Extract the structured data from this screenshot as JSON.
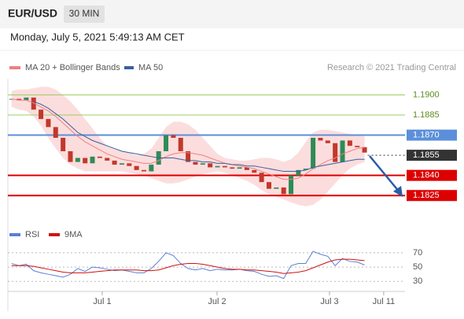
{
  "header": {
    "symbol": "EUR/USD",
    "timeframe": "30 MIN",
    "datetime": "Monday, July 5, 2021 5:49:13 AM CET",
    "source": "Research © 2021 Trading Central"
  },
  "chart_data": [
    {
      "type": "candlestick",
      "up_color": "#2e8b57",
      "down_color": "#c0392b",
      "x": [
        0,
        1,
        2,
        3,
        4,
        5,
        6,
        7,
        8,
        9,
        10,
        11,
        12,
        13,
        14,
        15,
        16,
        17,
        18,
        19,
        20,
        21,
        22,
        23,
        24,
        25,
        26,
        27,
        28,
        29,
        30,
        31,
        32,
        33,
        34,
        35,
        36,
        37,
        38,
        39,
        40,
        41,
        42,
        43,
        44,
        45,
        46,
        47,
        48
      ],
      "close": [
        1.1897,
        1.1896,
        1.1898,
        1.1889,
        1.1882,
        1.1876,
        1.1868,
        1.1858,
        1.185,
        1.1853,
        1.1849,
        1.1854,
        1.1853,
        1.1851,
        1.1848,
        1.1849,
        1.1847,
        1.1844,
        1.1843,
        1.1848,
        1.1858,
        1.187,
        1.1868,
        1.1858,
        1.185,
        1.1848,
        1.1849,
        1.1846,
        1.1847,
        1.1846,
        1.1845,
        1.1846,
        1.1844,
        1.1842,
        1.1835,
        1.183,
        1.1831,
        1.1826,
        1.184,
        1.1844,
        1.1845,
        1.1868,
        1.1866,
        1.1864,
        1.185,
        1.1866,
        1.1862,
        1.1861,
        1.1857
      ],
      "series": [
        {
          "name": "MA 20 + Bollinger Bands",
          "color": "#f08080",
          "band_color": "#fbd5d5",
          "values": [
            1.1897,
            1.1896,
            1.1896,
            1.1894,
            1.1891,
            1.1888,
            1.1884,
            1.1879,
            1.1874,
            1.1869,
            1.1865,
            1.1862,
            1.1859,
            1.1856,
            1.1854,
            1.1852,
            1.1851,
            1.185,
            1.1849,
            1.1849,
            1.1851,
            1.1854,
            1.1856,
            1.1857,
            1.1857,
            1.1856,
            1.1855,
            1.1853,
            1.1851,
            1.1849,
            1.1848,
            1.1847,
            1.1846,
            1.1845,
            1.1843,
            1.1841,
            1.1839,
            1.1837,
            1.1837,
            1.1838,
            1.1841,
            1.1845,
            1.1848,
            1.1851,
            1.1853,
            1.1856,
            1.1858,
            1.186,
            1.1861
          ],
          "upper": [
            1.1903,
            1.1904,
            1.1904,
            1.1905,
            1.1906,
            1.1906,
            1.1904,
            1.19,
            1.1895,
            1.1889,
            1.1882,
            1.1875,
            1.1868,
            1.1862,
            1.186,
            1.1858,
            1.1857,
            1.1855,
            1.1856,
            1.186,
            1.1868,
            1.1876,
            1.188,
            1.188,
            1.1878,
            1.1874,
            1.1868,
            1.1862,
            1.1856,
            1.1853,
            1.1852,
            1.1851,
            1.1851,
            1.1852,
            1.1853,
            1.1853,
            1.1852,
            1.185,
            1.1852,
            1.1857,
            1.1865,
            1.1872,
            1.1874,
            1.1874,
            1.1873,
            1.1872,
            1.1871,
            1.187,
            1.1869
          ],
          "lower": [
            1.1891,
            1.1889,
            1.1888,
            1.1884,
            1.1877,
            1.1868,
            1.186,
            1.1853,
            1.1848,
            1.1845,
            1.1843,
            1.1843,
            1.1843,
            1.1843,
            1.1843,
            1.1843,
            1.1842,
            1.1841,
            1.184,
            1.1838,
            1.1836,
            1.1834,
            1.1834,
            1.1835,
            1.1837,
            1.1839,
            1.1841,
            1.1842,
            1.1843,
            1.1842,
            1.184,
            1.1838,
            1.1836,
            1.1833,
            1.1829,
            1.1826,
            1.1824,
            1.1822,
            1.182,
            1.1818,
            1.1817,
            1.1818,
            1.1822,
            1.1828,
            1.1834,
            1.184,
            1.1845,
            1.1848,
            1.185
          ]
        },
        {
          "name": "MA 50",
          "color": "#3a5f9f",
          "values": [
            null,
            null,
            null,
            1.1895,
            1.1893,
            1.189,
            1.1886,
            1.1882,
            1.1877,
            1.1872,
            1.1869,
            1.1866,
            1.1864,
            1.1862,
            1.186,
            1.1858,
            1.1857,
            1.1856,
            1.1855,
            1.1854,
            1.1853,
            1.1853,
            1.1853,
            1.1852,
            1.1851,
            1.1851,
            1.185,
            1.185,
            1.1849,
            1.1849,
            1.1848,
            1.1848,
            1.1847,
            1.1847,
            1.1846,
            1.1845,
            1.1844,
            1.1843,
            1.1843,
            1.1843,
            1.1844,
            1.1846,
            1.1847,
            1.1848,
            1.1849,
            1.185,
            1.1851,
            1.1852,
            1.1852
          ]
        }
      ],
      "xlim": [
        -0.5,
        53.5
      ],
      "ylim": [
        1.1804,
        1.1912
      ],
      "levels": [
        {
          "value": 1.19,
          "label": "1.1900",
          "color": "#9ccc65",
          "text_color": "#5b8c1e",
          "style": "solid",
          "box": false
        },
        {
          "value": 1.1885,
          "label": "1.1885",
          "color": "#9ccc65",
          "text_color": "#5b8c1e",
          "style": "solid",
          "box": false
        },
        {
          "value": 1.187,
          "label": "1.1870",
          "color": "#5b8fd9",
          "text_color": "#ffffff",
          "style": "solid",
          "box": true
        },
        {
          "value": 1.1855,
          "label": "1.1855",
          "color": "#333333",
          "text_color": "#ffffff",
          "style": "dotted",
          "box": true
        },
        {
          "value": 1.184,
          "label": "1.1840",
          "color": "#dd0000",
          "text_color": "#ffffff",
          "style": "solid",
          "box": true
        },
        {
          "value": 1.1825,
          "label": "1.1825",
          "color": "#dd0000",
          "text_color": "#ffffff",
          "style": "solid",
          "box": true
        }
      ]
    },
    {
      "type": "line",
      "x": [
        0,
        1,
        2,
        3,
        4,
        5,
        6,
        7,
        8,
        9,
        10,
        11,
        12,
        13,
        14,
        15,
        16,
        17,
        18,
        19,
        20,
        21,
        22,
        23,
        24,
        25,
        26,
        27,
        28,
        29,
        30,
        31,
        32,
        33,
        34,
        35,
        36,
        37,
        38,
        39,
        40,
        41,
        42,
        43,
        44,
        45,
        46,
        47,
        48
      ],
      "series": [
        {
          "name": "RSI",
          "color": "#5b7fd6",
          "values": [
            55,
            52,
            54,
            45,
            42,
            40,
            38,
            36,
            40,
            48,
            44,
            50,
            49,
            47,
            45,
            46,
            44,
            42,
            42,
            48,
            58,
            70,
            66,
            55,
            48,
            46,
            48,
            45,
            47,
            46,
            46,
            47,
            45,
            44,
            40,
            37,
            38,
            34,
            52,
            55,
            55,
            72,
            68,
            65,
            52,
            62,
            58,
            57,
            53
          ]
        },
        {
          "name": "9MA",
          "color": "#d01010",
          "values": [
            52,
            52,
            52,
            51,
            49,
            47,
            45,
            43,
            42,
            42,
            42,
            43,
            44,
            45,
            46,
            46,
            46,
            46,
            45,
            45,
            46,
            49,
            52,
            54,
            55,
            55,
            54,
            52,
            50,
            48,
            47,
            47,
            46,
            46,
            45,
            44,
            43,
            41,
            42,
            43,
            45,
            49,
            53,
            57,
            60,
            61,
            61,
            60,
            59
          ]
        }
      ],
      "xlim": [
        -0.5,
        53.5
      ],
      "ylim": [
        16,
        82
      ],
      "yticks": [
        30,
        50,
        70
      ],
      "grid": true,
      "xticks": [
        {
          "value": 12.33,
          "label": "Jul 1"
        },
        {
          "value": 27.94,
          "label": "Jul 2"
        },
        {
          "value": 43.23,
          "label": "Jul 3"
        },
        {
          "value": 50.6,
          "label": "Jul 11"
        }
      ]
    }
  ]
}
